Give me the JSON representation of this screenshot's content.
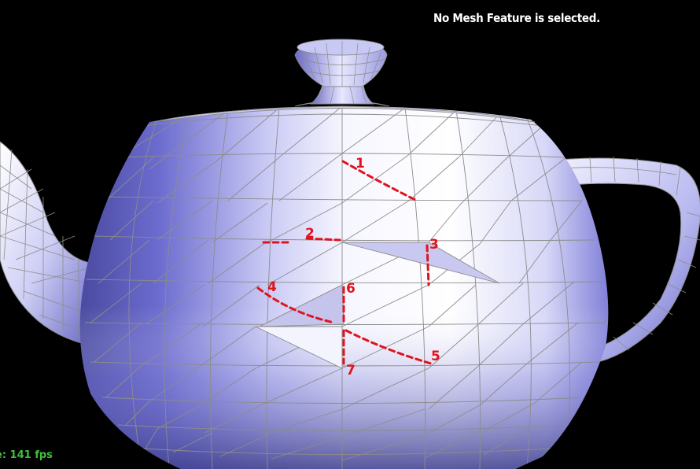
{
  "status": {
    "message": "No Mesh Feature is selected.",
    "framerate": "e: 141 fps"
  },
  "scene": {
    "object": "teapot-mesh",
    "background": "#000000",
    "mesh_color_light": "#ffffff",
    "mesh_color_dark": "#5a5ab4",
    "edge_color": "#8c8c8c",
    "annotation_color": "#e0141c",
    "highlighted_triangles": 2,
    "annotation_labels": [
      "1",
      "2",
      "3",
      "4",
      "5",
      "6",
      "7"
    ]
  }
}
